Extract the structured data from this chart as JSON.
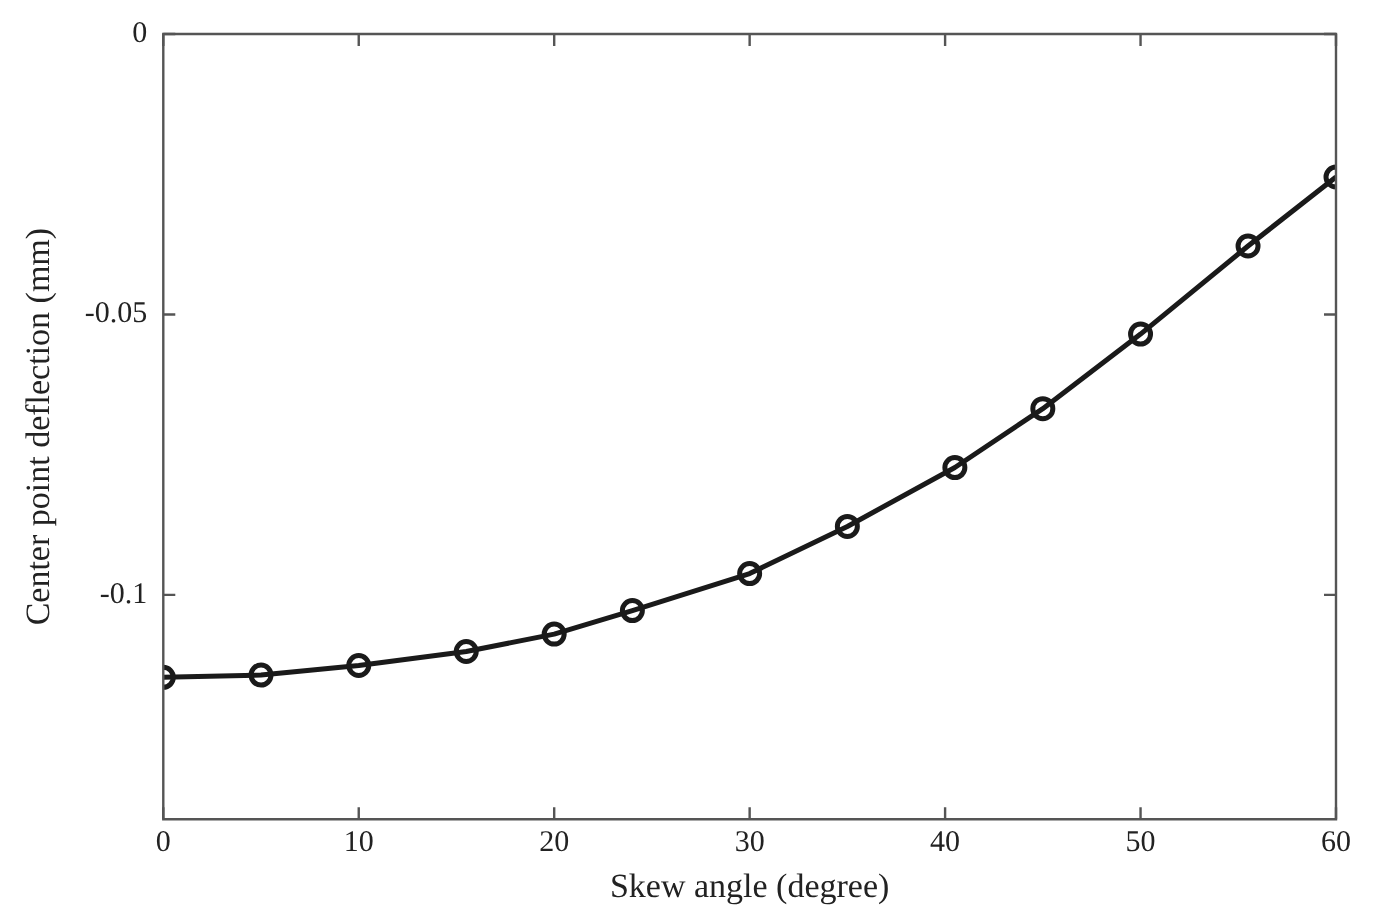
{
  "chart_data": {
    "type": "line",
    "xlabel": "Skew angle (degree)",
    "ylabel": "Center point deflection (mm)",
    "x": [
      0,
      5,
      10,
      15.5,
      20,
      24,
      30,
      35,
      40.5,
      45,
      50,
      55.5,
      60
    ],
    "series": [
      {
        "color": "#1a1a1a",
        "values": [
          -0.1147,
          -0.1143,
          -0.1126,
          -0.1101,
          -0.107,
          -0.1028,
          -0.0962,
          -0.0878,
          -0.0773,
          -0.0668,
          -0.0535,
          -0.0378,
          -0.0255
        ]
      }
    ],
    "xlim": [
      0,
      60
    ],
    "xticks": [
      0,
      10,
      20,
      30,
      40,
      50,
      60
    ],
    "ylim": [
      -0.14,
      0
    ],
    "yticks": [
      0,
      -0.05,
      -0.1
    ],
    "marker": "circle",
    "line_style": "solid",
    "grid": false,
    "legend": false
  }
}
